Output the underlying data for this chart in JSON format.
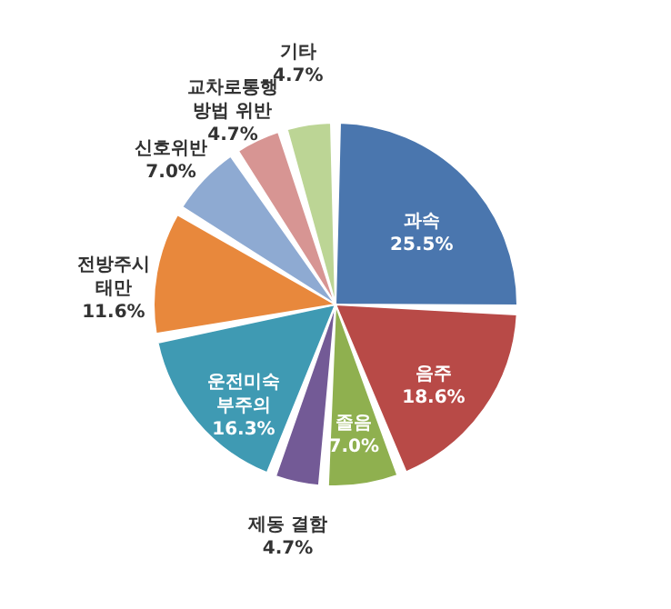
{
  "chart_data": {
    "type": "pie",
    "categories": [
      "과속",
      "음주",
      "졸음",
      "제동 결함",
      "운전미숙\n부주의",
      "전방주시\n태만",
      "신호위반",
      "교차로통행\n방법 위반",
      "기타"
    ],
    "values": [
      25.5,
      18.6,
      7.0,
      4.7,
      16.3,
      11.6,
      7.0,
      4.7,
      4.7
    ],
    "colors": [
      "#4a76ae",
      "#b84a47",
      "#8fb04f",
      "#735a96",
      "#3f9ab3",
      "#e8883c",
      "#8eaad2",
      "#d79593",
      "#bcd595"
    ],
    "value_labels": [
      "25.5%",
      "18.6%",
      "7.0%",
      "4.7%",
      "16.3%",
      "11.6%",
      "7.0%",
      "4.7%",
      "4.7%"
    ],
    "legend": false
  }
}
